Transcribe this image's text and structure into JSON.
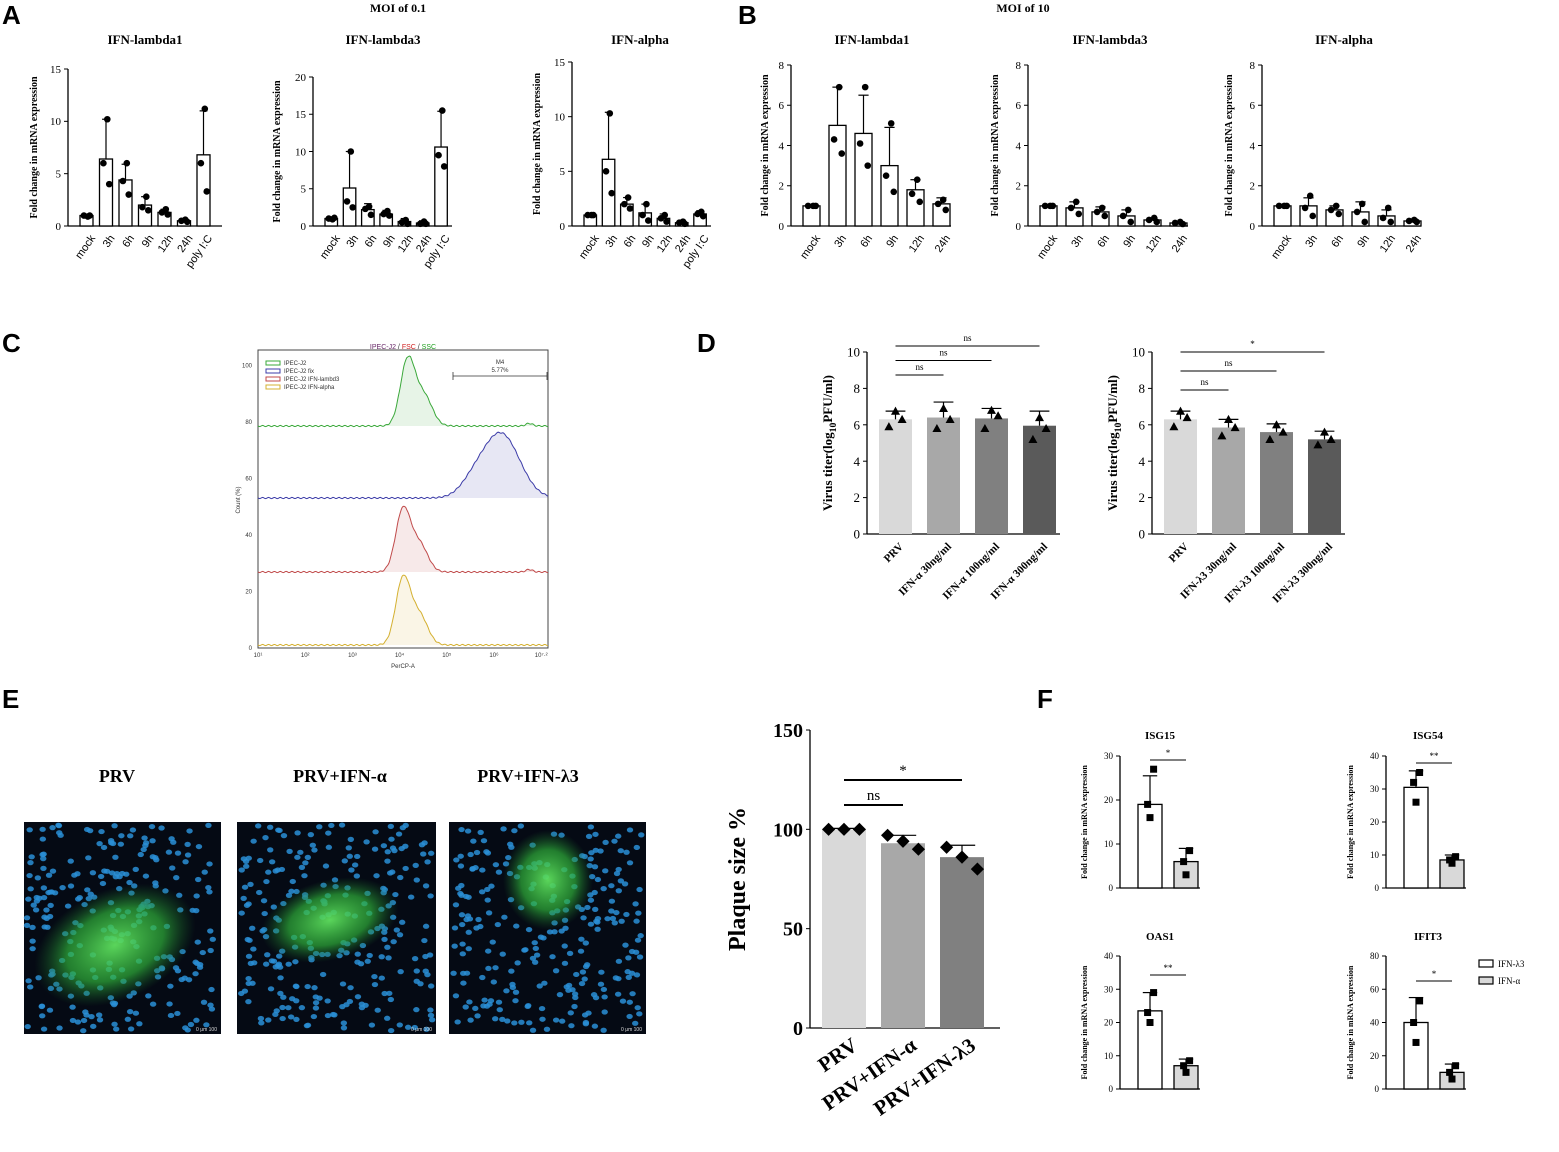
{
  "panels": {
    "A": "A",
    "B": "B",
    "C": "C",
    "D": "D",
    "E": "E",
    "F": "F"
  },
  "moi": {
    "a": "MOI of 0.1",
    "b": "MOI of 10"
  },
  "chart_data": [
    {
      "id": "A1",
      "type": "bar",
      "title": "IFN-lambda1",
      "ylabel": "Fold change in mRNA expression",
      "categories": [
        "mock",
        "3h",
        "6h",
        "9h",
        "12h",
        "24h",
        "poly I:C"
      ],
      "values": [
        1.0,
        6.4,
        4.4,
        2.0,
        1.3,
        0.5,
        6.8
      ],
      "errors": [
        0.1,
        3.8,
        1.5,
        0.8,
        0.3,
        0.2,
        4.2
      ],
      "points": [
        [
          0.9,
          1.0,
          1.0
        ],
        [
          10.2,
          6.0,
          4.0
        ],
        [
          6.0,
          4.3,
          3.0
        ],
        [
          2.8,
          1.8,
          1.5
        ],
        [
          1.6,
          1.3,
          1.1
        ],
        [
          0.6,
          0.5,
          0.4
        ],
        [
          11.2,
          6.0,
          3.3
        ]
      ],
      "ylim": [
        0,
        15
      ],
      "yticks": [
        0,
        5,
        10,
        15
      ]
    },
    {
      "id": "A2",
      "type": "bar",
      "title": "IFN-lambda3",
      "ylabel": "Fold change in mRNA expression",
      "categories": [
        "mock",
        "3h",
        "6h",
        "9h",
        "12h",
        "24h",
        "poly I:C"
      ],
      "values": [
        1.0,
        5.1,
        2.2,
        1.6,
        0.6,
        0.4,
        10.6
      ],
      "errors": [
        0.1,
        4.9,
        0.8,
        0.5,
        0.4,
        0.3,
        4.8
      ],
      "points": [
        [
          0.9,
          1.0,
          1.1
        ],
        [
          10.0,
          3.3,
          2.5
        ],
        [
          2.6,
          2.3,
          1.5
        ],
        [
          2.0,
          1.6,
          1.4
        ],
        [
          0.8,
          0.5,
          0.3
        ],
        [
          0.6,
          0.3,
          0.3
        ],
        [
          15.5,
          9.5,
          8.0
        ]
      ],
      "ylim": [
        0,
        20
      ],
      "yticks": [
        0,
        5,
        10,
        15,
        20
      ]
    },
    {
      "id": "A3",
      "type": "bar",
      "title": "IFN-alpha",
      "ylabel": "Fold change in mRNA expression",
      "categories": [
        "mock",
        "3h",
        "6h",
        "9h",
        "12h",
        "24h",
        "poly I:C"
      ],
      "values": [
        1.0,
        6.1,
        2.0,
        1.2,
        0.7,
        0.3,
        1.1
      ],
      "errors": [
        0.1,
        4.3,
        0.6,
        0.8,
        0.4,
        0.2,
        0.3
      ],
      "points": [
        [
          1.0,
          1.0,
          1.0
        ],
        [
          10.3,
          5.0,
          3.0
        ],
        [
          2.6,
          2.0,
          1.6
        ],
        [
          2.0,
          1.0,
          0.5
        ],
        [
          1.0,
          0.7,
          0.4
        ],
        [
          0.4,
          0.3,
          0.2
        ],
        [
          1.3,
          1.1,
          0.9
        ]
      ],
      "ylim": [
        0,
        15
      ],
      "yticks": [
        0,
        5,
        10,
        15
      ]
    },
    {
      "id": "B1",
      "type": "bar",
      "title": "IFN-lambda1",
      "ylabel": "Fold change in mRNA expression",
      "categories": [
        "mock",
        "3h",
        "6h",
        "9h",
        "12h",
        "24h"
      ],
      "values": [
        1.0,
        5.0,
        4.6,
        3.0,
        1.8,
        1.1
      ],
      "errors": [
        0.05,
        1.9,
        1.9,
        1.9,
        0.5,
        0.3
      ],
      "points": [
        [
          1.0,
          1.0,
          1.0
        ],
        [
          6.9,
          4.3,
          3.6
        ],
        [
          6.9,
          4.1,
          3.0
        ],
        [
          5.1,
          2.5,
          1.7
        ],
        [
          2.3,
          1.6,
          1.2
        ],
        [
          1.3,
          1.1,
          0.8
        ]
      ],
      "ylim": [
        0,
        8
      ],
      "yticks": [
        0,
        2,
        4,
        6,
        8
      ]
    },
    {
      "id": "B2",
      "type": "bar",
      "title": "IFN-lambda3",
      "ylabel": "Fold change in mRNA expression",
      "categories": [
        "mock",
        "3h",
        "6h",
        "9h",
        "12h",
        "24h"
      ],
      "values": [
        1.0,
        0.9,
        0.7,
        0.5,
        0.3,
        0.15
      ],
      "errors": [
        0.05,
        0.3,
        0.25,
        0.3,
        0.1,
        0.05
      ],
      "points": [
        [
          1.0,
          1.0,
          1.0
        ],
        [
          1.2,
          0.9,
          0.6
        ],
        [
          0.9,
          0.7,
          0.5
        ],
        [
          0.8,
          0.5,
          0.2
        ],
        [
          0.4,
          0.3,
          0.2
        ],
        [
          0.2,
          0.15,
          0.1
        ]
      ],
      "ylim": [
        0,
        8
      ],
      "yticks": [
        0,
        2,
        4,
        6,
        8
      ]
    },
    {
      "id": "B3",
      "type": "bar",
      "title": "IFN-alpha",
      "ylabel": "Fold change in mRNA expression",
      "categories": [
        "mock",
        "3h",
        "6h",
        "9h",
        "12h",
        "24h"
      ],
      "values": [
        1.0,
        1.0,
        0.8,
        0.7,
        0.5,
        0.25
      ],
      "errors": [
        0.05,
        0.4,
        0.2,
        0.5,
        0.3,
        0.1
      ],
      "points": [
        [
          1.0,
          1.0,
          1.0
        ],
        [
          1.5,
          0.9,
          0.5
        ],
        [
          1.0,
          0.8,
          0.6
        ],
        [
          1.1,
          0.7,
          0.2
        ],
        [
          0.9,
          0.4,
          0.2
        ],
        [
          0.3,
          0.25,
          0.2
        ]
      ],
      "ylim": [
        0,
        8
      ],
      "yticks": [
        0,
        2,
        4,
        6,
        8
      ]
    },
    {
      "id": "C",
      "type": "histogram",
      "title_parts": [
        "IPEC-J2",
        " / ",
        "FSC",
        " / ",
        "SSC"
      ],
      "legend": [
        "IPEC-J2",
        "IPEC-J2 fix",
        "IPEC-J2 IFN-lambd3",
        "IPEC-J2 IFN-alpha"
      ],
      "series_colors": [
        "#3aa83a",
        "#3c3ca8",
        "#c04a4a",
        "#d4b030"
      ],
      "gate": {
        "name": "M4",
        "value": "5.77%"
      },
      "xlabel": "PerCP-A",
      "ylabel": "Count (%)",
      "yticks": [
        "0",
        "20",
        "40",
        "60",
        "80",
        "100"
      ],
      "xticks": [
        "10¹",
        "10²",
        "10³",
        "10⁴",
        "10⁵",
        "10⁶",
        "10⁷·²"
      ],
      "peaks_log10": [
        4.2,
        6.2,
        4.1,
        4.1
      ]
    },
    {
      "id": "D1",
      "type": "bar",
      "ylabel_pre": "Virus titer(log",
      "ylabel_sub": "10",
      "ylabel_post": "PFU/ml)",
      "categories": [
        "PRV",
        "IFN-α 30ng/ml",
        "IFN-α 100ng/ml",
        "IFN-α 300ng/ml"
      ],
      "values": [
        6.3,
        6.4,
        6.35,
        5.95
      ],
      "errors": [
        0.45,
        0.85,
        0.55,
        0.8
      ],
      "points": [
        [
          6.75,
          6.3,
          5.9
        ],
        [
          6.9,
          6.3,
          5.8
        ],
        [
          6.8,
          6.5,
          5.8
        ],
        [
          6.4,
          5.8,
          5.2
        ]
      ],
      "colors": [
        "#d9d9d9",
        "#a8a8a8",
        "#808080",
        "#5a5a5a"
      ],
      "ylim": [
        0,
        10
      ],
      "yticks": [
        0,
        2,
        4,
        6,
        8,
        10
      ],
      "sig": [
        {
          "from": 0,
          "to": 1,
          "label": "ns"
        },
        {
          "from": 0,
          "to": 2,
          "label": "ns"
        },
        {
          "from": 0,
          "to": 3,
          "label": "ns"
        }
      ]
    },
    {
      "id": "D2",
      "type": "bar",
      "ylabel_pre": "Virus titer(log",
      "ylabel_sub": "10",
      "ylabel_post": "PFU/ml)",
      "categories": [
        "PRV",
        "IFN-λ3 30ng/ml",
        "IFN-λ3 100ng/ml",
        "IFN-λ3 300ng/ml"
      ],
      "values": [
        6.3,
        5.85,
        5.6,
        5.2
      ],
      "errors": [
        0.45,
        0.45,
        0.45,
        0.45
      ],
      "points": [
        [
          6.75,
          6.4,
          5.9
        ],
        [
          6.3,
          5.85,
          5.4
        ],
        [
          6.0,
          5.6,
          5.2
        ],
        [
          5.6,
          5.2,
          4.9
        ]
      ],
      "colors": [
        "#d9d9d9",
        "#a8a8a8",
        "#808080",
        "#5a5a5a"
      ],
      "ylim": [
        0,
        10
      ],
      "yticks": [
        0,
        2,
        4,
        6,
        8,
        10
      ],
      "sig": [
        {
          "from": 0,
          "to": 1,
          "label": "ns"
        },
        {
          "from": 0,
          "to": 2,
          "label": "ns"
        },
        {
          "from": 0,
          "to": 3,
          "label": "*"
        }
      ]
    },
    {
      "id": "E",
      "type": "bar",
      "ylabel": "Plaque size %",
      "categories": [
        "PRV",
        "PRV+IFN-α",
        "PRV+IFN-λ3"
      ],
      "values": [
        100,
        93,
        86
      ],
      "errors": [
        0.5,
        4,
        6
      ],
      "points": [
        [
          100,
          100,
          100
        ],
        [
          97,
          94,
          90
        ],
        [
          91,
          86,
          80
        ]
      ],
      "colors": [
        "#d9d9d9",
        "#a8a8a8",
        "#808080"
      ],
      "ylim": [
        0,
        150
      ],
      "yticks": [
        0,
        50,
        100,
        150
      ],
      "sig": [
        {
          "from": 0,
          "to": 1,
          "label": "ns"
        },
        {
          "from": 0,
          "to": 2,
          "label": "*"
        }
      ]
    },
    {
      "id": "F1",
      "type": "bar",
      "title": "ISG15",
      "ylabel": "Fold change in mRNA expression",
      "series": [
        {
          "name": "IFN-λ3",
          "values": [
            19
          ]
        },
        {
          "name": "IFN-α",
          "values": [
            6
          ]
        }
      ],
      "errors": [
        6.5,
        3
      ],
      "points": [
        [
          27,
          19,
          16
        ],
        [
          8.5,
          6,
          3
        ]
      ],
      "ylim": [
        0,
        30
      ],
      "yticks": [
        0,
        10,
        20,
        30
      ],
      "sig": "*"
    },
    {
      "id": "F2",
      "type": "bar",
      "title": "ISG54",
      "ylabel": "Fold change in mRNA expression",
      "series": [
        {
          "name": "IFN-λ3",
          "values": [
            30.5
          ]
        },
        {
          "name": "IFN-α",
          "values": [
            8.5
          ]
        }
      ],
      "errors": [
        5,
        1.5
      ],
      "points": [
        [
          35,
          32,
          26
        ],
        [
          9.5,
          8.5,
          7.5
        ]
      ],
      "ylim": [
        0,
        40
      ],
      "yticks": [
        0,
        10,
        20,
        30,
        40
      ],
      "sig": "**"
    },
    {
      "id": "F3",
      "type": "bar",
      "title": "OAS1",
      "ylabel": "Fold change in mRNA expression",
      "series": [
        {
          "name": "IFN-λ3",
          "values": [
            23.5
          ]
        },
        {
          "name": "IFN-α",
          "values": [
            7
          ]
        }
      ],
      "errors": [
        5.5,
        2
      ],
      "points": [
        [
          29,
          23,
          20
        ],
        [
          8.5,
          7,
          5
        ]
      ],
      "ylim": [
        0,
        40
      ],
      "yticks": [
        0,
        10,
        20,
        30,
        40
      ],
      "sig": "**"
    },
    {
      "id": "F4",
      "type": "bar",
      "title": "IFIT3",
      "ylabel": "Fold change in mRNA expression",
      "series": [
        {
          "name": "IFN-λ3",
          "values": [
            40
          ]
        },
        {
          "name": "IFN-α",
          "values": [
            10
          ]
        }
      ],
      "errors": [
        15,
        5
      ],
      "points": [
        [
          53,
          40,
          28
        ],
        [
          14,
          10,
          6
        ]
      ],
      "ylim": [
        0,
        80
      ],
      "yticks": [
        0,
        20,
        40,
        60,
        80
      ],
      "sig": "*"
    }
  ],
  "micrographs": {
    "labels": [
      "PRV",
      "PRV+IFN-α",
      "PRV+IFN-λ3"
    ],
    "scale_text": "0      μm    100",
    "colors": {
      "background": "#050a14",
      "nuclei": "#2a8fd6",
      "infected": "#3ec83e"
    }
  },
  "legend_f": [
    "IFN-λ3",
    "IFN-α"
  ]
}
